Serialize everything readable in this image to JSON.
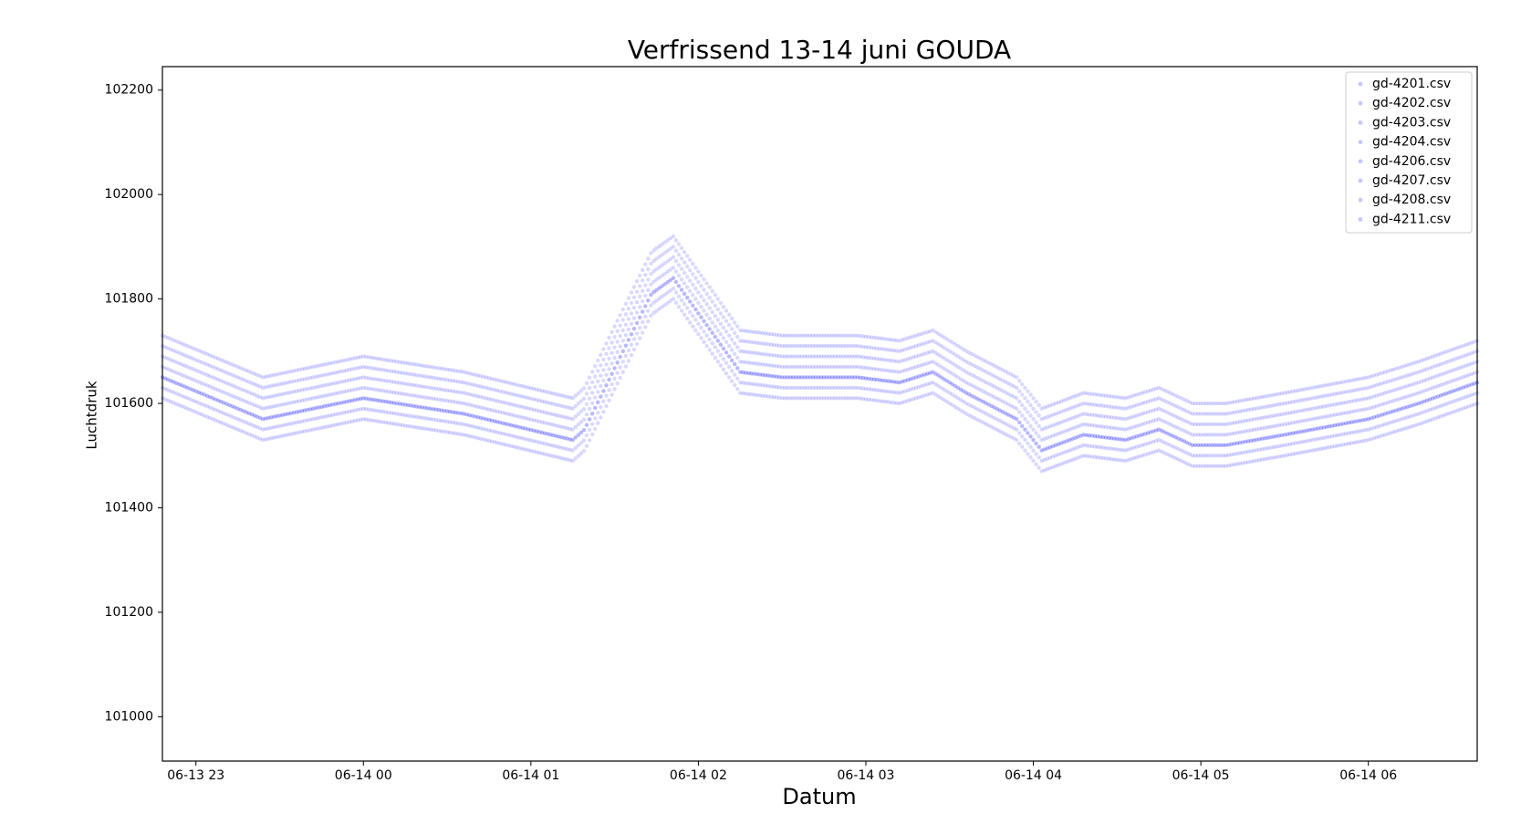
{
  "chart_data": {
    "type": "scatter",
    "title": "Verfrissend 13-14 juni GOUDA",
    "xlabel": "Datum",
    "ylabel": "Luchtdruk",
    "x_unit": "hours after 06-13 23:00",
    "xlim": [
      -0.2,
      7.65
    ],
    "ylim": [
      100915,
      102245
    ],
    "x_ticks": [
      {
        "value": 0,
        "label": "06-13 23"
      },
      {
        "value": 1,
        "label": "06-14 00"
      },
      {
        "value": 2,
        "label": "06-14 01"
      },
      {
        "value": 3,
        "label": "06-14 02"
      },
      {
        "value": 4,
        "label": "06-14 03"
      },
      {
        "value": 5,
        "label": "06-14 04"
      },
      {
        "value": 6,
        "label": "06-14 05"
      },
      {
        "value": 7,
        "label": "06-14 06"
      }
    ],
    "y_ticks": [
      101000,
      101200,
      101400,
      101600,
      101800,
      102000,
      102200
    ],
    "grid": false,
    "legend_position": "top-right",
    "marker_color": "#0000ff",
    "marker_alpha": 0.15,
    "sample_minutes": 1,
    "series": [
      {
        "name": "gd-4201.csv",
        "offset": 0,
        "x": [
          -0.2,
          0.4,
          1.0,
          1.6,
          2.25,
          2.32,
          2.55,
          2.72,
          2.85,
          3.25,
          3.5,
          3.95,
          4.2,
          4.4,
          4.6,
          4.9,
          5.05,
          5.3,
          5.55,
          5.75,
          5.95,
          6.15,
          6.5,
          7.0,
          7.3,
          7.65
        ],
        "y": [
          101650,
          101570,
          101610,
          101580,
          101530,
          101550,
          101700,
          101810,
          101840,
          101660,
          101650,
          101650,
          101640,
          101660,
          101620,
          101570,
          101510,
          101540,
          101530,
          101550,
          101520,
          101520,
          101540,
          101570,
          101600,
          101640
        ]
      },
      {
        "name": "gd-4202.csv",
        "offset": 40,
        "x": [
          -0.2,
          0.4,
          1.0,
          1.6,
          2.25,
          2.32,
          2.55,
          2.72,
          2.85,
          3.25,
          3.5,
          3.95,
          4.2,
          4.4,
          4.6,
          4.9,
          5.05,
          5.3,
          5.55,
          5.75,
          5.95,
          6.15,
          6.5,
          7.0,
          7.3,
          7.65
        ],
        "y": [
          101650,
          101570,
          101610,
          101580,
          101530,
          101550,
          101700,
          101810,
          101840,
          101660,
          101650,
          101650,
          101640,
          101660,
          101620,
          101570,
          101510,
          101540,
          101530,
          101550,
          101520,
          101520,
          101540,
          101570,
          101600,
          101640
        ]
      },
      {
        "name": "gd-4203.csv",
        "offset": 80,
        "x": [
          -0.2,
          0.4,
          1.0,
          1.6,
          2.25,
          2.32,
          2.55,
          2.72,
          2.85,
          3.25,
          3.5,
          3.95,
          4.2,
          4.4,
          4.6,
          4.9,
          5.05,
          5.3,
          5.55,
          5.75,
          5.95,
          6.15,
          6.5,
          7.0,
          7.3,
          7.65
        ],
        "y": [
          101650,
          101570,
          101610,
          101580,
          101530,
          101550,
          101700,
          101810,
          101840,
          101660,
          101650,
          101650,
          101640,
          101660,
          101620,
          101570,
          101510,
          101540,
          101530,
          101550,
          101520,
          101520,
          101540,
          101570,
          101600,
          101640
        ]
      },
      {
        "name": "gd-4204.csv",
        "offset": -40,
        "x": [
          -0.2,
          0.4,
          1.0,
          1.6,
          2.25,
          2.32,
          2.55,
          2.72,
          2.85,
          3.25,
          3.5,
          3.95,
          4.2,
          4.4,
          4.6,
          4.9,
          5.05,
          5.3,
          5.55,
          5.75,
          5.95,
          6.15,
          6.5,
          7.0,
          7.3,
          7.65
        ],
        "y": [
          101650,
          101570,
          101610,
          101580,
          101530,
          101550,
          101700,
          101810,
          101840,
          101660,
          101650,
          101650,
          101640,
          101660,
          101620,
          101570,
          101510,
          101540,
          101530,
          101550,
          101520,
          101520,
          101540,
          101570,
          101600,
          101640
        ]
      },
      {
        "name": "gd-4206.csv",
        "offset": 20,
        "x": [
          -0.2,
          0.4,
          1.0,
          1.6,
          2.25,
          2.32,
          2.55,
          2.72,
          2.85,
          3.25,
          3.5,
          3.95,
          4.2,
          4.4,
          4.6,
          4.9,
          5.05,
          5.3,
          5.55,
          5.75,
          5.95,
          6.15,
          6.5,
          7.0,
          7.3,
          7.65
        ],
        "y": [
          101650,
          101570,
          101610,
          101580,
          101530,
          101550,
          101700,
          101810,
          101840,
          101660,
          101650,
          101650,
          101640,
          101660,
          101620,
          101570,
          101510,
          101540,
          101530,
          101550,
          101520,
          101520,
          101540,
          101570,
          101600,
          101640
        ]
      },
      {
        "name": "gd-4207.csv",
        "offset": -20,
        "x": [
          -0.2,
          0.4,
          1.0,
          1.6,
          2.25,
          2.32,
          2.55,
          2.72,
          2.85,
          3.25,
          3.5,
          3.95,
          4.2,
          4.4,
          4.6,
          4.9,
          5.05,
          5.3,
          5.55,
          5.75,
          5.95,
          6.15,
          6.5,
          7.0,
          7.3,
          7.65
        ],
        "y": [
          101650,
          101570,
          101610,
          101580,
          101530,
          101550,
          101700,
          101810,
          101840,
          101660,
          101650,
          101650,
          101640,
          101660,
          101620,
          101570,
          101510,
          101540,
          101530,
          101550,
          101520,
          101520,
          101540,
          101570,
          101600,
          101640
        ]
      },
      {
        "name": "gd-4208.csv",
        "offset": 60,
        "x": [
          -0.2,
          0.4,
          1.0,
          1.6,
          2.25,
          2.32,
          2.55,
          2.72,
          2.85,
          3.25,
          3.5,
          3.95,
          4.2,
          4.4,
          4.6,
          4.9,
          5.05,
          5.3,
          5.55,
          5.75,
          5.95,
          6.15,
          6.5,
          7.0,
          7.3,
          7.65
        ],
        "y": [
          101650,
          101570,
          101610,
          101580,
          101530,
          101550,
          101700,
          101810,
          101840,
          101660,
          101650,
          101650,
          101640,
          101660,
          101620,
          101570,
          101510,
          101540,
          101530,
          101550,
          101520,
          101520,
          101540,
          101570,
          101600,
          101640
        ]
      },
      {
        "name": "gd-4211.csv",
        "offset": 0,
        "x": [
          -0.2,
          0.4,
          1.0,
          1.6,
          2.25,
          2.32,
          2.55,
          2.72,
          2.85,
          3.25,
          3.5,
          3.95,
          4.2,
          4.4,
          4.6,
          4.9,
          5.05,
          5.3,
          5.55,
          5.75,
          5.95,
          6.15,
          6.5,
          7.0,
          7.3,
          7.65
        ],
        "y": [
          101650,
          101570,
          101610,
          101580,
          101530,
          101550,
          101700,
          101810,
          101840,
          101660,
          101650,
          101650,
          101640,
          101660,
          101620,
          101570,
          101510,
          101540,
          101530,
          101550,
          101520,
          101520,
          101540,
          101570,
          101600,
          101640
        ]
      }
    ]
  }
}
